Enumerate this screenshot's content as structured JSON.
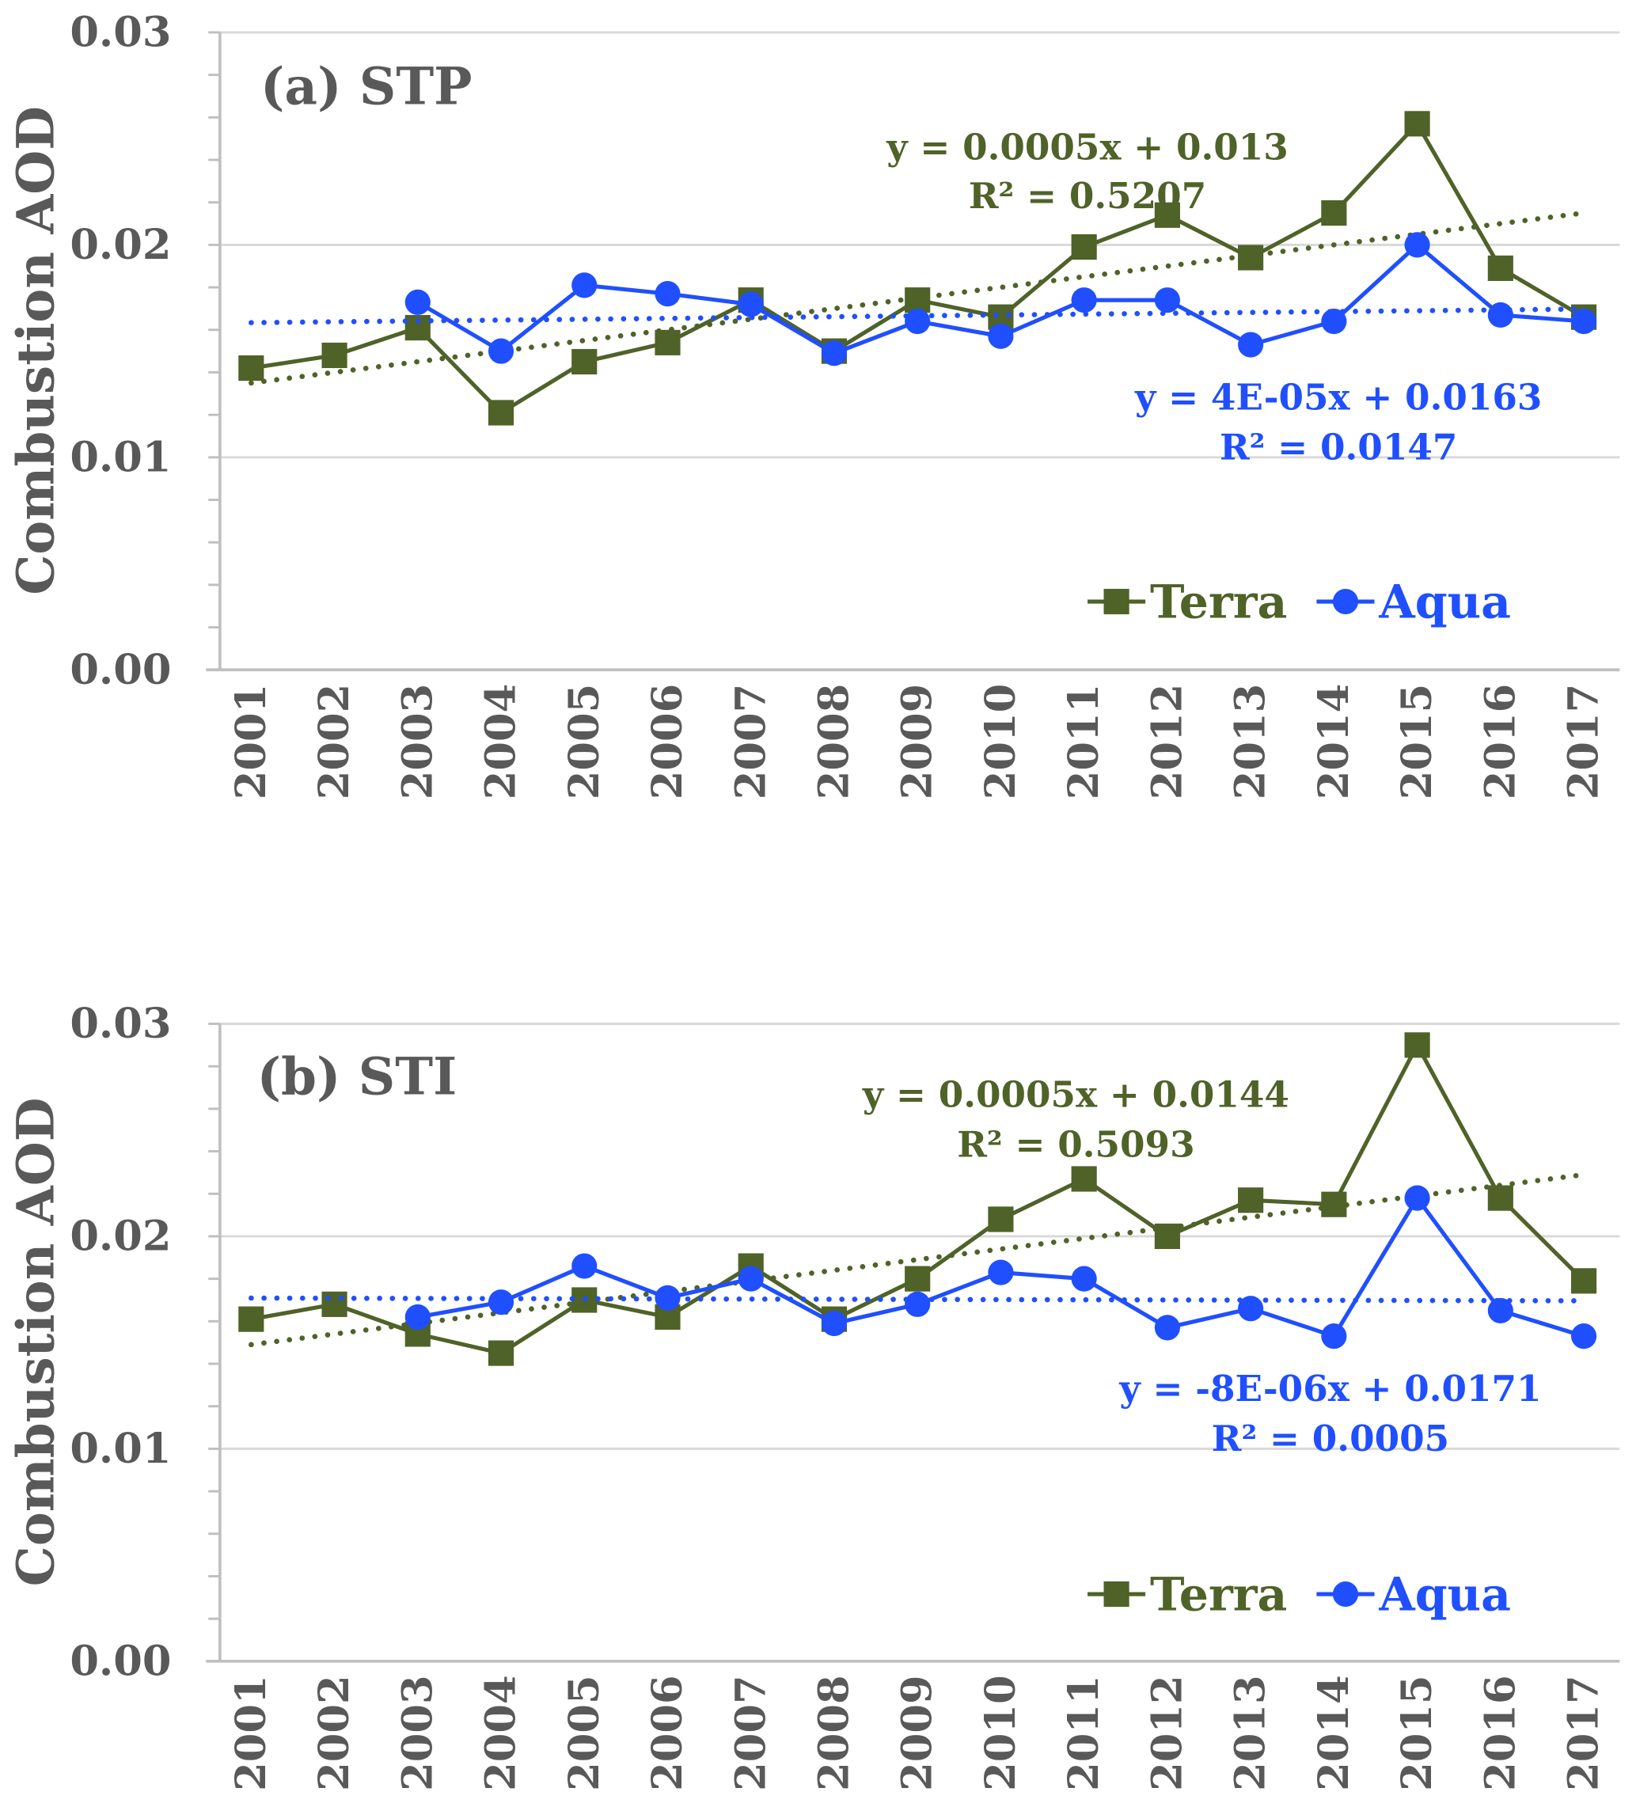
{
  "colors": {
    "terra": "#4f6228",
    "aqua": "#1f4fff",
    "text": "#595959",
    "grid": "#d9d9d9",
    "axis": "#bfbfbf"
  },
  "chart_data": [
    {
      "type": "line",
      "title": "(a) STP",
      "xlabel": "",
      "ylabel": "Combustion AOD",
      "ylim": [
        0,
        0.03
      ],
      "yticks": [
        "0.00",
        "0.01",
        "0.02",
        "0.03"
      ],
      "categories": [
        "2001",
        "2002",
        "2003",
        "2004",
        "2005",
        "2006",
        "2007",
        "2008",
        "2009",
        "2010",
        "2011",
        "2012",
        "2013",
        "2014",
        "2015",
        "2016",
        "2017"
      ],
      "grid": true,
      "legend": "bottom-right",
      "series": [
        {
          "name": "Terra",
          "marker": "square",
          "values": [
            0.0142,
            0.0148,
            0.0161,
            0.0121,
            0.0145,
            0.0154,
            0.0174,
            0.015,
            0.0174,
            0.0166,
            0.0199,
            0.0214,
            0.0194,
            0.0215,
            0.0257,
            0.0189,
            0.0166
          ],
          "trend": {
            "slope": 0.0005,
            "intercept": 0.013,
            "equation": "y = 0.0005x + 0.013",
            "r2": "R² = 0.5207"
          }
        },
        {
          "name": "Aqua",
          "marker": "circle",
          "values": [
            null,
            null,
            0.0173,
            0.015,
            0.0181,
            0.0177,
            0.0172,
            0.0149,
            0.0164,
            0.0157,
            0.0174,
            0.0174,
            0.0153,
            0.0164,
            0.02,
            0.0167,
            0.0164
          ],
          "trend": {
            "slope": 4e-05,
            "intercept": 0.0163,
            "equation": "y = 4E-05x + 0.0163",
            "r2": "R² = 0.0147"
          }
        }
      ]
    },
    {
      "type": "line",
      "title": "(b) STI",
      "xlabel": "",
      "ylabel": "Combustion AOD",
      "ylim": [
        0,
        0.03
      ],
      "yticks": [
        "0.00",
        "0.01",
        "0.02",
        "0.03"
      ],
      "categories": [
        "2001",
        "2002",
        "2003",
        "2004",
        "2005",
        "2006",
        "2007",
        "2008",
        "2009",
        "2010",
        "2011",
        "2012",
        "2013",
        "2014",
        "2015",
        "2016",
        "2017"
      ],
      "grid": true,
      "legend": "bottom-right",
      "series": [
        {
          "name": "Terra",
          "marker": "square",
          "values": [
            0.0161,
            0.0168,
            0.0154,
            0.0145,
            0.017,
            0.0162,
            0.0186,
            0.0161,
            0.018,
            0.0208,
            0.0227,
            0.02,
            0.0217,
            0.0215,
            0.029,
            0.0218,
            0.0179
          ],
          "trend": {
            "slope": 0.0005,
            "intercept": 0.0144,
            "equation": "y = 0.0005x + 0.0144",
            "r2": "R² = 0.5093"
          }
        },
        {
          "name": "Aqua",
          "marker": "circle",
          "values": [
            null,
            null,
            0.0162,
            0.0169,
            0.0186,
            0.0171,
            0.018,
            0.0159,
            0.0168,
            0.0183,
            0.018,
            0.0157,
            0.0166,
            0.0153,
            0.0218,
            0.0165,
            0.0153
          ],
          "trend": {
            "slope": -8e-06,
            "intercept": 0.0171,
            "equation": "y = -8E-06x + 0.0171",
            "r2": "R² = 0.0005"
          }
        }
      ]
    }
  ]
}
